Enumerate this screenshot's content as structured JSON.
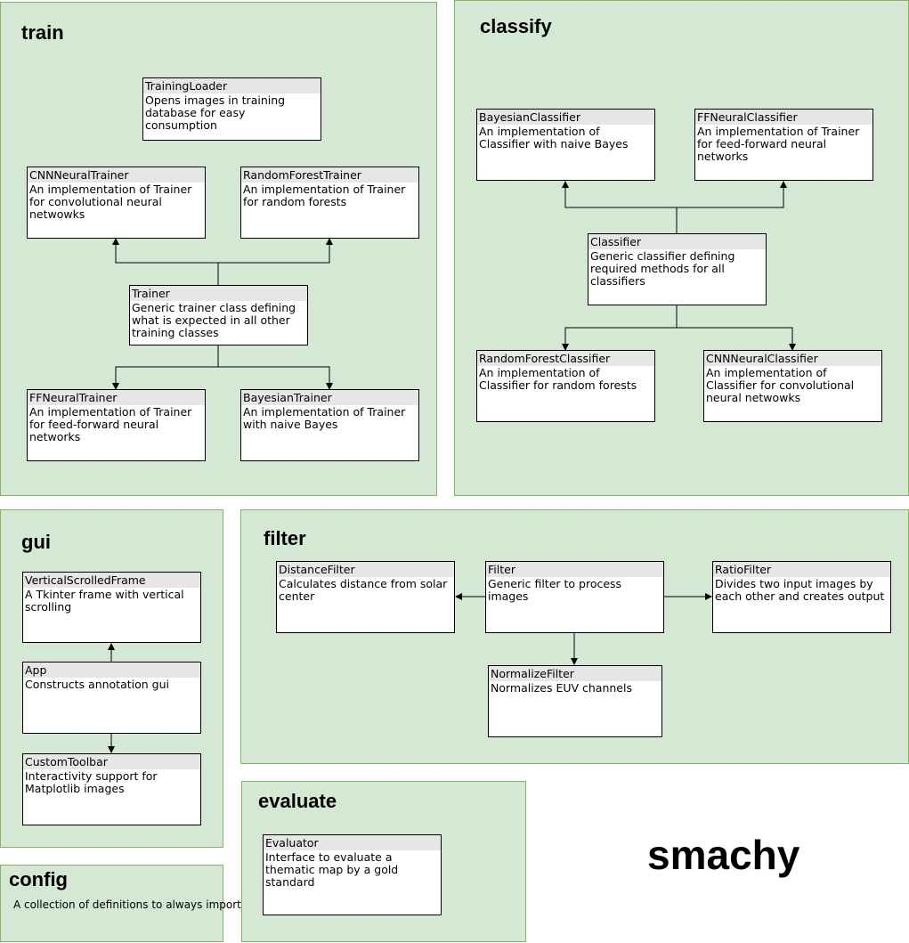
{
  "brand": "smachy",
  "packages": {
    "train": {
      "title": "train",
      "classes": {
        "training_loader": {
          "name": "TrainingLoader",
          "desc": "Opens images in training database for easy consumption"
        },
        "cnn_neural_trainer": {
          "name": "CNNNeuralTrainer",
          "desc": "An implementation of Trainer for convolutional neural netwowks"
        },
        "random_forest_trainer": {
          "name": "RandomForestTrainer",
          "desc": "An implementation of Trainer for random forests"
        },
        "trainer": {
          "name": "Trainer",
          "desc": "Generic trainer class defining what is expected in all other training classes"
        },
        "ff_neural_trainer": {
          "name": "FFNeuralTrainer",
          "desc": "An implementation of Trainer for feed-forward neural networks"
        },
        "bayesian_trainer": {
          "name": "BayesianTrainer",
          "desc": "An implementation of Trainer with naive Bayes"
        }
      }
    },
    "classify": {
      "title": "classify",
      "classes": {
        "bayesian_classifier": {
          "name": "BayesianClassifier",
          "desc": "An implementation of Classifier with naive Bayes"
        },
        "ff_neural_classifier": {
          "name": "FFNeuralClassifier",
          "desc": "An implementation of Trainer for feed-forward neural networks"
        },
        "classifier": {
          "name": "Classifier",
          "desc": "Generic classifier defining required methods for all classifiers"
        },
        "random_forest_classifier": {
          "name": "RandomForestClassifier",
          "desc": "An implementation of Classifier for random forests"
        },
        "cnn_neural_classifier": {
          "name": "CNNNeuralClassifier",
          "desc": "An implementation of Classifier for convolutional neural netwowks"
        }
      }
    },
    "gui": {
      "title": "gui",
      "classes": {
        "vertical_scrolled_frame": {
          "name": "VerticalScrolledFrame",
          "desc": "A Tkinter frame with vertical scrolling"
        },
        "app": {
          "name": "App",
          "desc": "Constructs annotation gui"
        },
        "custom_toolbar": {
          "name": "CustomToolbar",
          "desc": "Interactivity support for Matplotlib images"
        }
      }
    },
    "filter": {
      "title": "filter",
      "classes": {
        "distance_filter": {
          "name": "DistanceFilter",
          "desc": "Calculates distance from solar center"
        },
        "filter": {
          "name": "Filter",
          "desc": "Generic filter to process images"
        },
        "ratio_filter": {
          "name": "RatioFilter",
          "desc": "Divides two input images by each other and creates output"
        },
        "normalize_filter": {
          "name": "NormalizeFilter",
          "desc": "Normalizes EUV channels"
        }
      }
    },
    "evaluate": {
      "title": "evaluate",
      "classes": {
        "evaluator": {
          "name": "Evaluator",
          "desc": "Interface to evaluate a thematic map by a gold standard"
        }
      }
    },
    "config": {
      "title": "config",
      "desc": "A collection of definitions to always import"
    }
  }
}
